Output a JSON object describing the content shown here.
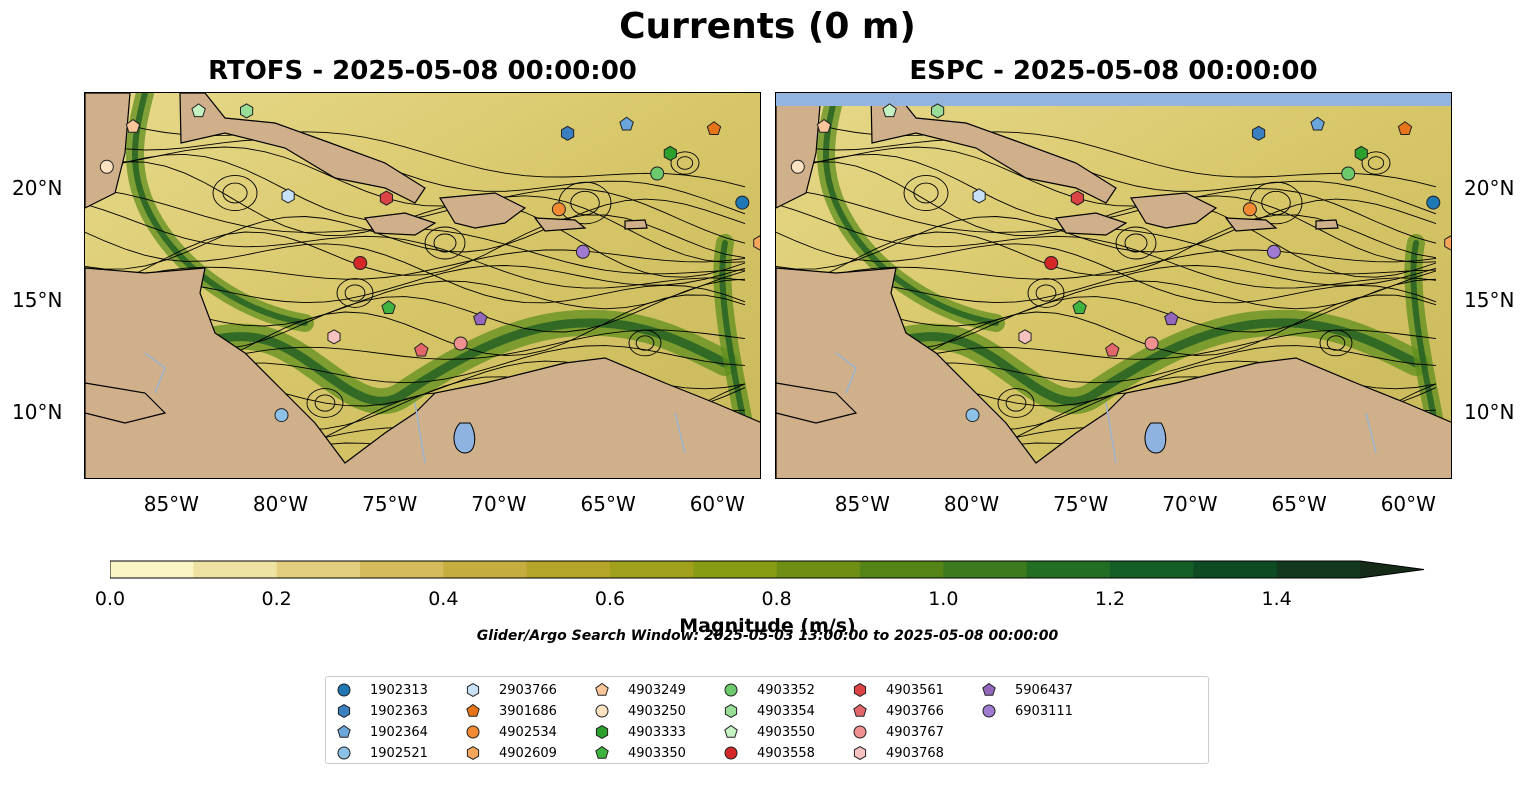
{
  "title": "Currents (0 m)",
  "panels": [
    {
      "title": "RTOFS - 2025-05-08 00:00:00"
    },
    {
      "title": "ESPC - 2025-05-08 00:00:00"
    }
  ],
  "axes": {
    "lon_ticks": [
      "85°W",
      "80°W",
      "75°W",
      "70°W",
      "65°W",
      "60°W"
    ],
    "lat_ticks": [
      "20°N",
      "15°N",
      "10°N"
    ],
    "lon_range": [
      -89,
      -58
    ],
    "lat_range": [
      7,
      24.3
    ]
  },
  "colorbar": {
    "label": "Magnitude (m/s)",
    "ticks": [
      "0.0",
      "0.2",
      "0.4",
      "0.6",
      "0.8",
      "1.0",
      "1.2",
      "1.4"
    ],
    "range": [
      0,
      1.5
    ],
    "extend": "max",
    "colors": [
      "#fbf5c6",
      "#efe3a3",
      "#e3cd7e",
      "#d6bb5c",
      "#c6ad3f",
      "#b5a42a",
      "#a1a01d",
      "#889b14",
      "#6e8f13",
      "#548415",
      "#3b7a1d",
      "#226e22",
      "#135e26",
      "#0e4b22",
      "#12381d",
      "#152a17"
    ],
    "extend_color": "#152a17"
  },
  "search_window": "Glider/Argo Search Window: 2025-05-03 13:00:00 to 2025-05-08 00:00:00",
  "colors": {
    "land": "#d0b08a",
    "lake": "#8fb3e0",
    "espc_nodata": "#92b4df"
  },
  "legend": [
    {
      "label": "1902313",
      "color": "#1f77b4",
      "marker": "circle"
    },
    {
      "label": "1902363",
      "color": "#3a7fbf",
      "marker": "hexagon"
    },
    {
      "label": "1902364",
      "color": "#6aa6dc",
      "marker": "pentagon"
    },
    {
      "label": "1902521",
      "color": "#8ec1e8",
      "marker": "circle"
    },
    {
      "label": "2903766",
      "color": "#c8e1f6",
      "marker": "hexagon"
    },
    {
      "label": "3901686",
      "color": "#e8741a",
      "marker": "pentagon"
    },
    {
      "label": "4902534",
      "color": "#f18a32",
      "marker": "circle"
    },
    {
      "label": "4902609",
      "color": "#f6a65a",
      "marker": "hexagon"
    },
    {
      "label": "4903249",
      "color": "#fbc59a",
      "marker": "pentagon"
    },
    {
      "label": "4903250",
      "color": "#fde2c2",
      "marker": "circle"
    },
    {
      "label": "4903333",
      "color": "#2ca02c",
      "marker": "hexagon"
    },
    {
      "label": "4903350",
      "color": "#3fb33f",
      "marker": "pentagon"
    },
    {
      "label": "4903352",
      "color": "#6cc96c",
      "marker": "circle"
    },
    {
      "label": "4903354",
      "color": "#98de98",
      "marker": "hexagon"
    },
    {
      "label": "4903550",
      "color": "#c4f2c2",
      "marker": "pentagon"
    },
    {
      "label": "4903558",
      "color": "#d62728",
      "marker": "circle"
    },
    {
      "label": "4903561",
      "color": "#db4346",
      "marker": "hexagon"
    },
    {
      "label": "4903766",
      "color": "#e3676a",
      "marker": "pentagon"
    },
    {
      "label": "4903767",
      "color": "#f0908f",
      "marker": "circle"
    },
    {
      "label": "4903768",
      "color": "#f8c2c0",
      "marker": "hexagon"
    },
    {
      "label": "5906437",
      "color": "#9467bd",
      "marker": "pentagon"
    },
    {
      "label": "6903111",
      "color": "#a07ad0",
      "marker": "circle"
    }
  ],
  "floats": [
    {
      "id": "1902313",
      "lon": -58.9,
      "lat": 19.4
    },
    {
      "id": "1902363",
      "lon": -66.9,
      "lat": 22.5
    },
    {
      "id": "1902364",
      "lon": -64.2,
      "lat": 22.9
    },
    {
      "id": "1902521",
      "lon": -80.0,
      "lat": 9.9
    },
    {
      "id": "2903766",
      "lon": -79.7,
      "lat": 19.7
    },
    {
      "id": "3901686",
      "lon": -60.2,
      "lat": 22.7
    },
    {
      "id": "4902534",
      "lon": -67.3,
      "lat": 19.1
    },
    {
      "id": "4902609",
      "lon": -58.1,
      "lat": 17.6
    },
    {
      "id": "4903249",
      "lon": -86.8,
      "lat": 22.8
    },
    {
      "id": "4903250",
      "lon": -88.0,
      "lat": 21.0
    },
    {
      "id": "4903333",
      "lon": -62.2,
      "lat": 21.6
    },
    {
      "id": "4903350",
      "lon": -75.1,
      "lat": 14.7
    },
    {
      "id": "4903352",
      "lon": -62.8,
      "lat": 20.7
    },
    {
      "id": "4903354",
      "lon": -81.6,
      "lat": 23.5
    },
    {
      "id": "4903550",
      "lon": -83.8,
      "lat": 23.5
    },
    {
      "id": "4903558",
      "lon": -76.4,
      "lat": 16.7
    },
    {
      "id": "4903561",
      "lon": -75.2,
      "lat": 19.6
    },
    {
      "id": "4903766",
      "lon": -73.6,
      "lat": 12.8
    },
    {
      "id": "4903767",
      "lon": -71.8,
      "lat": 13.1
    },
    {
      "id": "4903768",
      "lon": -77.6,
      "lat": 13.4
    },
    {
      "id": "5906437",
      "lon": -70.9,
      "lat": 14.2
    },
    {
      "id": "6903111",
      "lon": -66.2,
      "lat": 17.2
    }
  ]
}
